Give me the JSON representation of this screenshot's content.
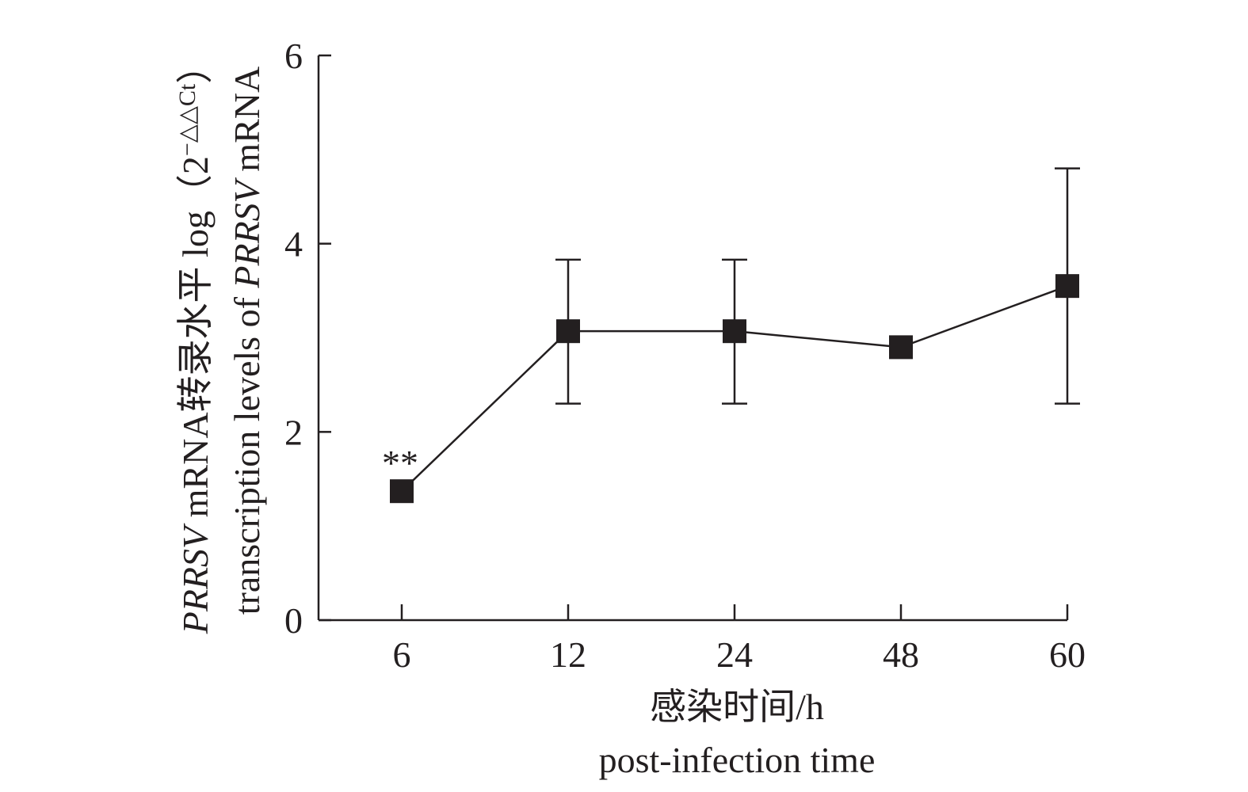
{
  "chart_data": {
    "type": "line",
    "categories": [
      "6",
      "12",
      "24",
      "48",
      "60"
    ],
    "series": [
      {
        "name": "PRRSV mRNA",
        "values": [
          1.37,
          3.07,
          3.07,
          2.9,
          3.55
        ],
        "error_upper": [
          null,
          3.83,
          3.83,
          null,
          4.8
        ],
        "error_lower": [
          null,
          2.3,
          2.3,
          null,
          2.3
        ]
      }
    ],
    "annotations": [
      {
        "category": "6",
        "text": "**"
      }
    ],
    "yticks": [
      "0",
      "2",
      "4",
      "6"
    ],
    "ylim": [
      0,
      6
    ],
    "xlabel_cn": "感染时间/h",
    "xlabel_en": "post-infection time",
    "ylabel_line1": {
      "gene": "PRRSV",
      "text": " mRNA转录水平 log（2",
      "superscript": "−△△Ct",
      "close": "）"
    },
    "ylabel_line2": {
      "text": "transcription levels of ",
      "gene": "PRRSV",
      "tail": " mRNA"
    },
    "colors": {
      "ink": "#231f20",
      "background": "#ffffff"
    }
  }
}
